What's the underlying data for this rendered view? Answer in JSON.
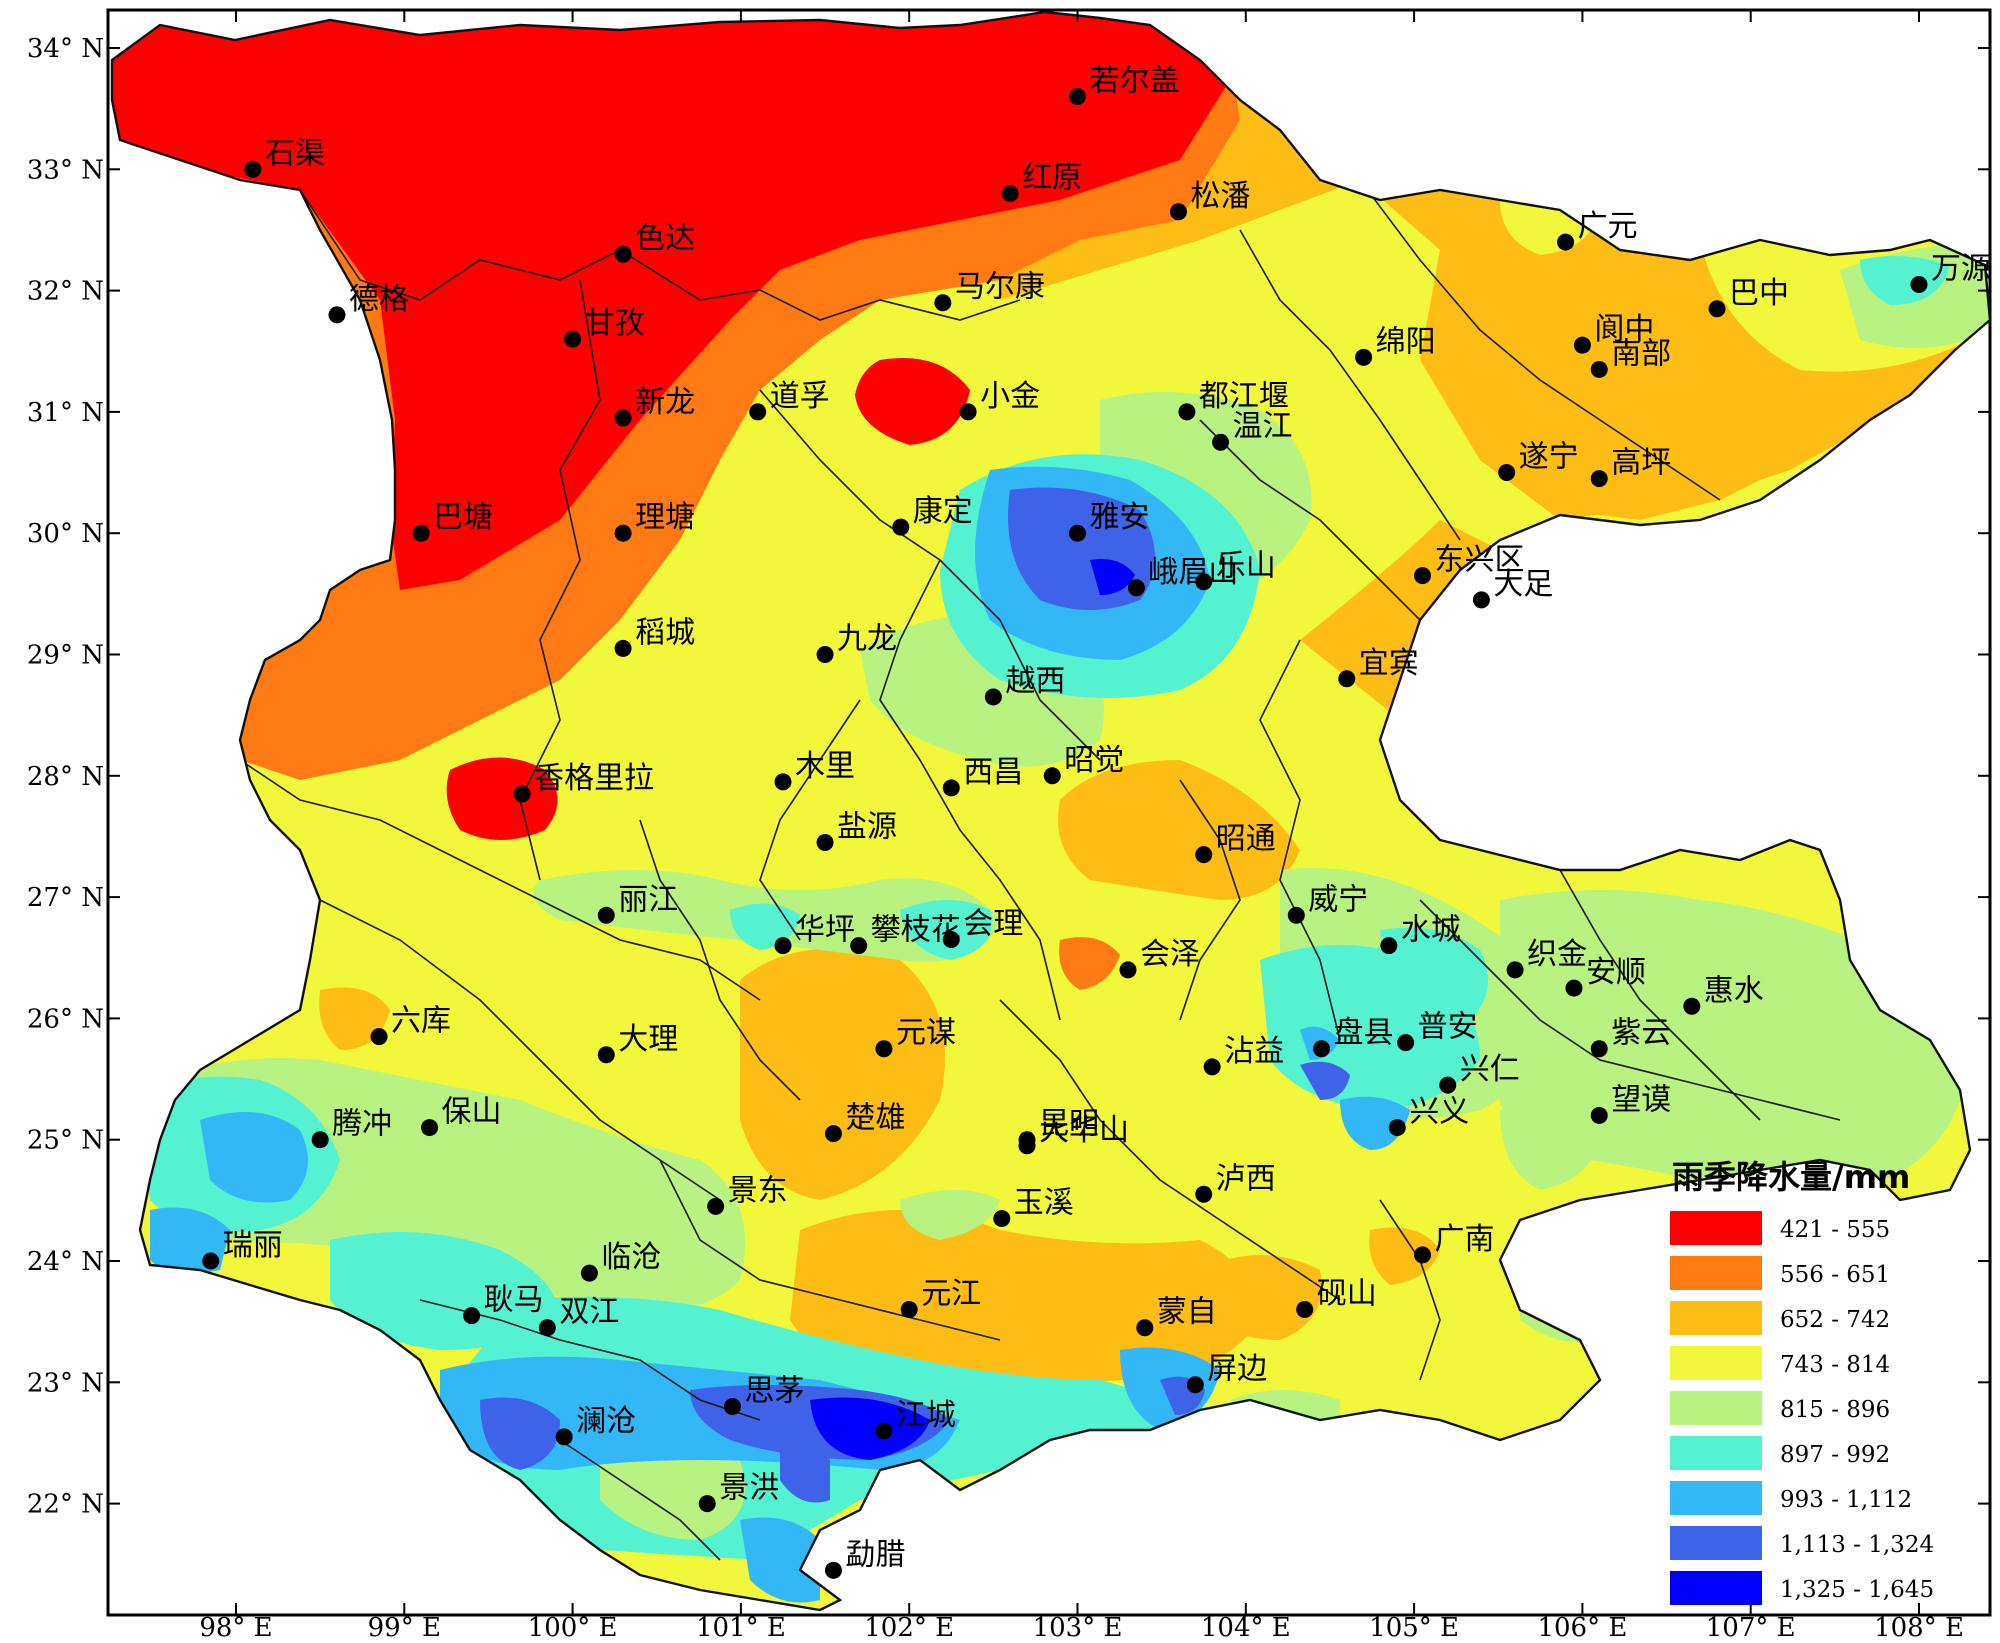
{
  "map": {
    "legend": {
      "title": "雨季降水量/mm",
      "classes": [
        {
          "label": "421 - 555",
          "color": "#ff0000"
        },
        {
          "label": "556 - 651",
          "color": "#ff7a12"
        },
        {
          "label": "652 - 742",
          "color": "#fdbd14"
        },
        {
          "label": "743 - 814",
          "color": "#f1f73b"
        },
        {
          "label": "815 - 896",
          "color": "#b8f280"
        },
        {
          "label": "897 - 992",
          "color": "#55f2d2"
        },
        {
          "label": "993 - 1,112",
          "color": "#34b7f7"
        },
        {
          "label": "1,113 - 1,324",
          "color": "#3e63e8"
        },
        {
          "label": "1,325 - 1,645",
          "color": "#0000ff"
        }
      ]
    },
    "longitude_ticks": [
      "98° E",
      "99° E",
      "100° E",
      "101° E",
      "102° E",
      "103° E",
      "104° E",
      "105° E",
      "106° E",
      "107° E",
      "108° E"
    ],
    "latitude_ticks": [
      "34° N",
      "33° N",
      "32° N",
      "31° N",
      "30° N",
      "29° N",
      "28° N",
      "27° N",
      "26° N",
      "25° N",
      "24° N",
      "23° N",
      "22° N"
    ],
    "stations": [
      {
        "name": "若尔盖",
        "lon": 103.0,
        "lat": 33.6
      },
      {
        "name": "石渠",
        "lon": 98.1,
        "lat": 33.0
      },
      {
        "name": "红原",
        "lon": 102.6,
        "lat": 32.8
      },
      {
        "name": "松潘",
        "lon": 103.6,
        "lat": 32.65
      },
      {
        "name": "色达",
        "lon": 100.3,
        "lat": 32.3
      },
      {
        "name": "广元",
        "lon": 105.9,
        "lat": 32.4
      },
      {
        "name": "德格",
        "lon": 98.6,
        "lat": 31.8
      },
      {
        "name": "马尔康",
        "lon": 102.2,
        "lat": 31.9
      },
      {
        "name": "巴中",
        "lon": 106.8,
        "lat": 31.85
      },
      {
        "name": "万源",
        "lon": 108.0,
        "lat": 32.05
      },
      {
        "name": "甘孜",
        "lon": 100.0,
        "lat": 31.6
      },
      {
        "name": "阆中",
        "lon": 106.0,
        "lat": 31.55
      },
      {
        "name": "南部",
        "lon": 106.1,
        "lat": 31.35
      },
      {
        "name": "绵阳",
        "lon": 104.7,
        "lat": 31.45
      },
      {
        "name": "新龙",
        "lon": 100.3,
        "lat": 30.95
      },
      {
        "name": "道孚",
        "lon": 101.1,
        "lat": 31.0
      },
      {
        "name": "小金",
        "lon": 102.35,
        "lat": 31.0
      },
      {
        "name": "都江堰",
        "lon": 103.65,
        "lat": 31.0
      },
      {
        "name": "温江",
        "lon": 103.85,
        "lat": 30.75
      },
      {
        "name": "遂宁",
        "lon": 105.55,
        "lat": 30.5
      },
      {
        "name": "高坪",
        "lon": 106.1,
        "lat": 30.45
      },
      {
        "name": "巴塘",
        "lon": 99.1,
        "lat": 30.0
      },
      {
        "name": "理塘",
        "lon": 100.3,
        "lat": 30.0
      },
      {
        "name": "康定",
        "lon": 101.95,
        "lat": 30.05
      },
      {
        "name": "雅安",
        "lon": 103.0,
        "lat": 30.0
      },
      {
        "name": "峨眉山",
        "lon": 103.35,
        "lat": 29.55
      },
      {
        "name": "乐山",
        "lon": 103.75,
        "lat": 29.6
      },
      {
        "name": "东兴区",
        "lon": 105.05,
        "lat": 29.65
      },
      {
        "name": "大足",
        "lon": 105.4,
        "lat": 29.45
      },
      {
        "name": "稻城",
        "lon": 100.3,
        "lat": 29.05
      },
      {
        "name": "九龙",
        "lon": 101.5,
        "lat": 29.0
      },
      {
        "name": "宜宾",
        "lon": 104.6,
        "lat": 28.8
      },
      {
        "name": "越西",
        "lon": 102.5,
        "lat": 28.65
      },
      {
        "name": "香格里拉",
        "lon": 99.7,
        "lat": 27.85
      },
      {
        "name": "木里",
        "lon": 101.25,
        "lat": 27.95
      },
      {
        "name": "西昌",
        "lon": 102.25,
        "lat": 27.9
      },
      {
        "name": "昭觉",
        "lon": 102.85,
        "lat": 28.0
      },
      {
        "name": "盐源",
        "lon": 101.5,
        "lat": 27.45
      },
      {
        "name": "昭通",
        "lon": 103.75,
        "lat": 27.35
      },
      {
        "name": "丽江",
        "lon": 100.2,
        "lat": 26.85
      },
      {
        "name": "威宁",
        "lon": 104.3,
        "lat": 26.85
      },
      {
        "name": "华坪",
        "lon": 101.25,
        "lat": 26.6
      },
      {
        "name": "攀枝花",
        "lon": 101.7,
        "lat": 26.6
      },
      {
        "name": "会理",
        "lon": 102.25,
        "lat": 26.65
      },
      {
        "name": "水城",
        "lon": 104.85,
        "lat": 26.6
      },
      {
        "name": "织金",
        "lon": 105.6,
        "lat": 26.4
      },
      {
        "name": "安顺",
        "lon": 105.95,
        "lat": 26.25
      },
      {
        "name": "惠水",
        "lon": 106.65,
        "lat": 26.1
      },
      {
        "name": "会泽",
        "lon": 103.3,
        "lat": 26.4
      },
      {
        "name": "六库",
        "lon": 98.85,
        "lat": 25.85
      },
      {
        "name": "大理",
        "lon": 100.2,
        "lat": 25.7
      },
      {
        "name": "元谋",
        "lon": 101.85,
        "lat": 25.75
      },
      {
        "name": "沾益",
        "lon": 103.8,
        "lat": 25.6
      },
      {
        "name": "盘县",
        "lon": 104.45,
        "lat": 25.75
      },
      {
        "name": "紫云",
        "lon": 106.1,
        "lat": 25.75
      },
      {
        "name": "普安",
        "lon": 104.95,
        "lat": 25.8
      },
      {
        "name": "兴仁",
        "lon": 105.2,
        "lat": 25.45
      },
      {
        "name": "保山",
        "lon": 99.15,
        "lat": 25.1
      },
      {
        "name": "楚雄",
        "lon": 101.55,
        "lat": 25.05
      },
      {
        "name": "昆明",
        "lon": 102.7,
        "lat": 25.0
      },
      {
        "name": "大华山",
        "lon": 102.7,
        "lat": 24.95
      },
      {
        "name": "兴义",
        "lon": 104.9,
        "lat": 25.1
      },
      {
        "name": "望谟",
        "lon": 106.1,
        "lat": 25.2
      },
      {
        "name": "腾冲",
        "lon": 98.5,
        "lat": 25.0
      },
      {
        "name": "景东",
        "lon": 100.85,
        "lat": 24.45
      },
      {
        "name": "泸西",
        "lon": 103.75,
        "lat": 24.55
      },
      {
        "name": "玉溪",
        "lon": 102.55,
        "lat": 24.35
      },
      {
        "name": "瑞丽",
        "lon": 97.85,
        "lat": 24.0
      },
      {
        "name": "临沧",
        "lon": 100.1,
        "lat": 23.9
      },
      {
        "name": "广南",
        "lon": 105.05,
        "lat": 24.05
      },
      {
        "name": "耿马",
        "lon": 99.4,
        "lat": 23.55
      },
      {
        "name": "双江",
        "lon": 99.85,
        "lat": 23.45
      },
      {
        "name": "元江",
        "lon": 102.0,
        "lat": 23.6
      },
      {
        "name": "蒙自",
        "lon": 103.4,
        "lat": 23.45
      },
      {
        "name": "砚山",
        "lon": 104.35,
        "lat": 23.6
      },
      {
        "name": "屏边",
        "lon": 103.7,
        "lat": 22.98
      },
      {
        "name": "思茅",
        "lon": 100.95,
        "lat": 22.8
      },
      {
        "name": "澜沧",
        "lon": 99.95,
        "lat": 22.55
      },
      {
        "name": "江城",
        "lon": 101.85,
        "lat": 22.6
      },
      {
        "name": "景洪",
        "lon": 100.8,
        "lat": 22.0
      },
      {
        "name": "勐腊",
        "lon": 101.55,
        "lat": 21.45
      }
    ]
  }
}
